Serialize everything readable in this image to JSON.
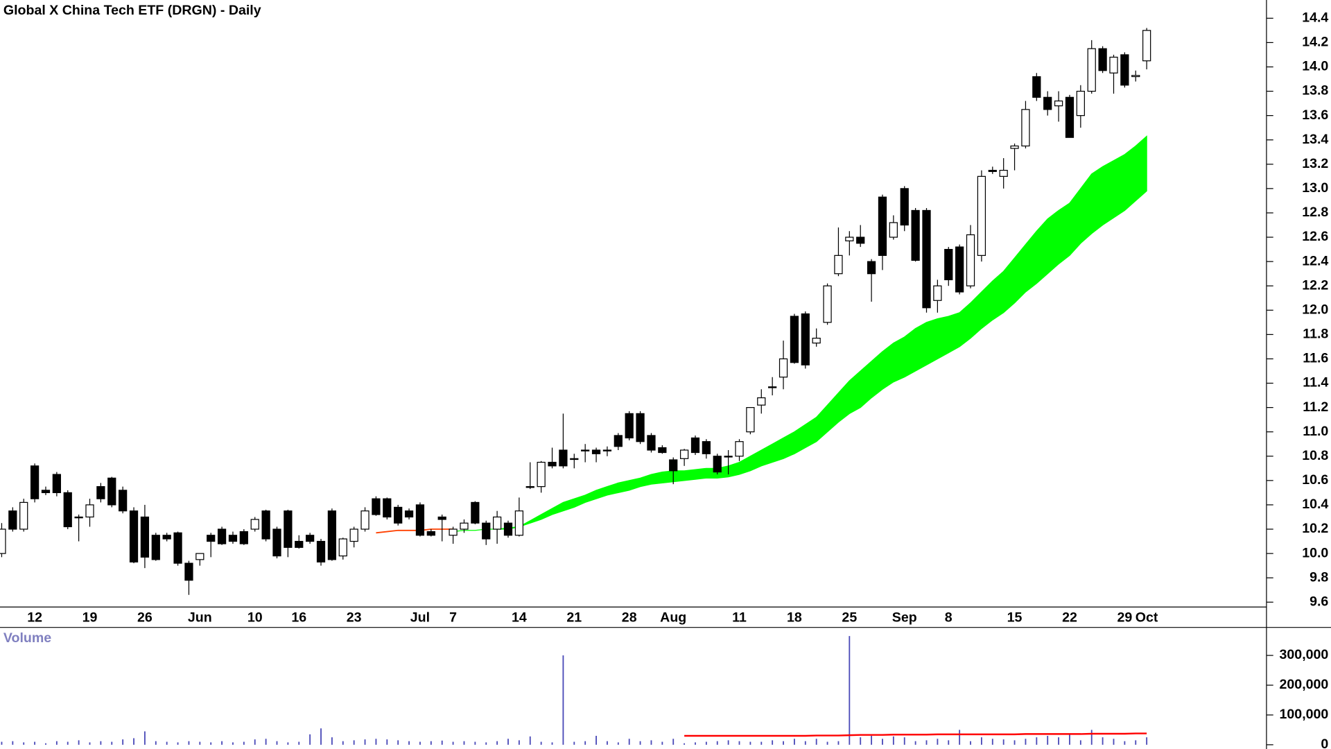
{
  "chart_data": [
    {
      "type": "candlestick",
      "title": "Global X China Tech ETF (DRGN) - Daily",
      "categories": [
        null,
        null,
        null,
        "12",
        null,
        null,
        null,
        null,
        "19",
        null,
        null,
        null,
        null,
        "26",
        null,
        null,
        null,
        null,
        "Jun",
        null,
        null,
        null,
        null,
        "10",
        null,
        null,
        null,
        "16",
        null,
        null,
        null,
        null,
        "23",
        null,
        null,
        null,
        null,
        null,
        "Jul",
        null,
        null,
        "7",
        null,
        null,
        null,
        null,
        null,
        "14",
        null,
        null,
        null,
        null,
        "21",
        null,
        null,
        null,
        null,
        "28",
        null,
        null,
        null,
        "Aug",
        null,
        null,
        null,
        null,
        null,
        "11",
        null,
        null,
        null,
        null,
        "18",
        null,
        null,
        null,
        null,
        "25",
        null,
        null,
        null,
        null,
        "Sep",
        null,
        null,
        null,
        "8",
        null,
        null,
        null,
        null,
        null,
        "15",
        null,
        null,
        null,
        null,
        "22",
        null,
        null,
        null,
        null,
        "29",
        null,
        "Oct"
      ],
      "open": [
        10.0,
        10.35,
        10.2,
        10.72,
        10.52,
        10.65,
        10.5,
        10.3,
        10.3,
        10.55,
        10.62,
        10.52,
        10.35,
        10.3,
        10.15,
        10.15,
        10.17,
        9.92,
        9.95,
        10.15,
        10.2,
        10.15,
        10.18,
        10.2,
        10.35,
        10.2,
        10.35,
        10.1,
        10.15,
        10.1,
        10.35,
        9.98,
        10.1,
        10.2,
        10.45,
        10.45,
        10.38,
        10.35,
        10.4,
        10.18,
        10.3,
        10.15,
        10.2,
        10.42,
        10.25,
        10.2,
        10.25,
        10.15,
        10.55,
        10.55,
        10.75,
        10.85,
        10.78,
        10.85,
        10.85,
        10.85,
        10.97,
        11.15,
        11.15,
        10.97,
        10.87,
        10.77,
        10.78,
        10.95,
        10.92,
        10.8,
        10.8,
        10.8,
        11.0,
        11.22,
        11.37,
        11.45,
        11.95,
        11.97,
        11.73,
        11.9,
        12.3,
        12.57,
        12.6,
        12.4,
        12.93,
        12.6,
        13.0,
        12.82,
        12.82,
        12.08,
        12.5,
        12.52,
        12.2,
        12.45,
        13.15,
        13.1,
        13.33,
        13.35,
        13.92,
        13.75,
        13.68,
        13.75,
        13.6,
        13.8,
        14.15,
        13.95,
        14.1,
        13.92,
        14.05
      ],
      "high": [
        10.25,
        10.38,
        10.45,
        10.74,
        10.55,
        10.67,
        10.52,
        10.32,
        10.45,
        10.58,
        10.63,
        10.55,
        10.38,
        10.4,
        10.17,
        10.17,
        10.18,
        9.94,
        10.0,
        10.17,
        10.22,
        10.18,
        10.2,
        10.3,
        10.36,
        10.22,
        10.36,
        10.15,
        10.17,
        10.12,
        10.37,
        10.13,
        10.22,
        10.38,
        10.47,
        10.46,
        10.4,
        10.37,
        10.42,
        10.2,
        10.32,
        10.22,
        10.28,
        10.43,
        10.27,
        10.35,
        10.27,
        10.46,
        10.75,
        10.76,
        10.87,
        11.15,
        10.82,
        10.9,
        10.87,
        10.88,
        10.99,
        11.17,
        11.17,
        10.99,
        10.89,
        10.79,
        10.86,
        10.97,
        10.94,
        10.82,
        10.85,
        10.94,
        11.2,
        11.35,
        11.45,
        11.75,
        11.97,
        11.99,
        11.85,
        12.22,
        12.68,
        12.65,
        12.7,
        12.42,
        12.95,
        12.78,
        13.02,
        12.84,
        12.84,
        12.25,
        12.52,
        12.54,
        12.7,
        13.15,
        13.18,
        13.25,
        13.37,
        13.72,
        13.95,
        13.8,
        13.8,
        13.77,
        13.85,
        14.22,
        14.17,
        14.1,
        14.12,
        13.97,
        14.32
      ],
      "low": [
        9.97,
        10.18,
        10.18,
        10.42,
        10.48,
        10.47,
        10.2,
        10.1,
        10.22,
        10.42,
        10.38,
        10.33,
        9.92,
        9.88,
        9.94,
        10.1,
        9.9,
        9.66,
        9.9,
        9.97,
        10.07,
        10.08,
        10.07,
        10.18,
        10.1,
        9.96,
        9.97,
        10.04,
        10.08,
        9.9,
        9.94,
        9.95,
        10.05,
        10.18,
        10.31,
        10.28,
        10.23,
        10.28,
        10.14,
        10.14,
        10.1,
        10.08,
        10.17,
        10.24,
        10.07,
        10.08,
        10.13,
        10.14,
        10.53,
        10.5,
        10.7,
        10.7,
        10.7,
        10.75,
        10.75,
        10.8,
        10.85,
        10.93,
        10.9,
        10.83,
        10.82,
        10.57,
        10.72,
        10.81,
        10.78,
        10.65,
        10.65,
        10.76,
        10.98,
        11.15,
        11.3,
        11.35,
        11.56,
        11.52,
        11.7,
        11.88,
        12.28,
        12.45,
        12.52,
        12.07,
        12.33,
        12.58,
        12.65,
        12.4,
        11.98,
        11.98,
        12.2,
        12.13,
        12.18,
        12.4,
        13.12,
        13.0,
        13.15,
        13.33,
        13.72,
        13.6,
        13.55,
        13.42,
        13.5,
        13.78,
        13.95,
        13.78,
        13.83,
        13.88,
        13.98
      ],
      "close": [
        10.2,
        10.2,
        10.42,
        10.45,
        10.5,
        10.5,
        10.22,
        10.3,
        10.4,
        10.45,
        10.4,
        10.35,
        9.93,
        9.97,
        9.95,
        10.12,
        9.92,
        9.78,
        10.0,
        10.1,
        10.08,
        10.1,
        10.08,
        10.28,
        10.12,
        9.98,
        10.05,
        10.05,
        10.1,
        9.93,
        9.95,
        10.12,
        10.2,
        10.35,
        10.32,
        10.3,
        10.25,
        10.3,
        10.15,
        10.15,
        10.28,
        10.2,
        10.25,
        10.25,
        10.12,
        10.3,
        10.15,
        10.35,
        10.55,
        10.75,
        10.72,
        10.72,
        10.78,
        10.85,
        10.82,
        10.85,
        10.88,
        10.95,
        10.92,
        10.85,
        10.83,
        10.68,
        10.85,
        10.83,
        10.82,
        10.67,
        10.8,
        10.92,
        11.2,
        11.28,
        11.37,
        11.6,
        11.57,
        11.55,
        11.77,
        12.2,
        12.45,
        12.6,
        12.55,
        12.3,
        12.45,
        12.72,
        12.7,
        12.41,
        12.02,
        12.2,
        12.25,
        12.15,
        12.62,
        13.1,
        13.14,
        13.15,
        13.35,
        13.65,
        13.75,
        13.65,
        13.72,
        13.42,
        13.8,
        14.15,
        13.97,
        14.08,
        13.85,
        13.93,
        14.3
      ],
      "up_color": "#ffffff",
      "down_color": "#000000",
      "band": {
        "color": "#00ff00",
        "upper": [
          null,
          null,
          null,
          null,
          null,
          null,
          null,
          null,
          null,
          null,
          null,
          null,
          null,
          null,
          null,
          null,
          null,
          null,
          null,
          null,
          null,
          null,
          null,
          null,
          null,
          null,
          null,
          null,
          null,
          null,
          null,
          null,
          null,
          null,
          null,
          null,
          null,
          null,
          null,
          null,
          null,
          10.18,
          10.19,
          10.19,
          10.2,
          10.2,
          10.21,
          10.22,
          10.27,
          10.32,
          10.37,
          10.42,
          10.45,
          10.48,
          10.52,
          10.55,
          10.58,
          10.6,
          10.62,
          10.65,
          10.67,
          10.68,
          10.68,
          10.69,
          10.7,
          10.7,
          10.72,
          10.75,
          10.8,
          10.85,
          10.9,
          10.95,
          11.0,
          11.06,
          11.12,
          11.22,
          11.32,
          11.42,
          11.5,
          11.58,
          11.66,
          11.73,
          11.78,
          11.85,
          11.9,
          11.93,
          11.95,
          11.98,
          12.06,
          12.15,
          12.24,
          12.32,
          12.43,
          12.54,
          12.65,
          12.75,
          12.82,
          12.88,
          13.0,
          13.12,
          13.18,
          13.23,
          13.28,
          13.35,
          13.43
        ],
        "lower": [
          null,
          null,
          null,
          null,
          null,
          null,
          null,
          null,
          null,
          null,
          null,
          null,
          null,
          null,
          null,
          null,
          null,
          null,
          null,
          null,
          null,
          null,
          null,
          null,
          null,
          null,
          null,
          null,
          null,
          null,
          null,
          null,
          null,
          null,
          null,
          null,
          null,
          null,
          null,
          null,
          null,
          10.18,
          10.19,
          10.19,
          10.2,
          10.2,
          10.2,
          10.22,
          10.25,
          10.28,
          10.32,
          10.35,
          10.38,
          10.42,
          10.45,
          10.48,
          10.5,
          10.52,
          10.55,
          10.57,
          10.58,
          10.59,
          10.6,
          10.61,
          10.62,
          10.62,
          10.63,
          10.65,
          10.68,
          10.72,
          10.75,
          10.78,
          10.82,
          10.87,
          10.92,
          11.0,
          11.08,
          11.15,
          11.2,
          11.28,
          11.35,
          11.41,
          11.45,
          11.5,
          11.55,
          11.6,
          11.65,
          11.7,
          11.77,
          11.85,
          11.92,
          11.98,
          12.06,
          12.15,
          12.22,
          12.3,
          12.38,
          12.45,
          12.55,
          12.63,
          12.7,
          12.76,
          12.82,
          12.9,
          12.98
        ]
      },
      "line": {
        "color": "#ff4000",
        "values": [
          null,
          null,
          null,
          null,
          null,
          null,
          null,
          null,
          null,
          null,
          null,
          null,
          null,
          null,
          null,
          null,
          null,
          null,
          null,
          null,
          null,
          null,
          null,
          null,
          null,
          null,
          null,
          null,
          null,
          null,
          null,
          null,
          null,
          null,
          10.17,
          10.18,
          10.19,
          10.19,
          10.19,
          10.2,
          10.2,
          10.2,
          null,
          null,
          null,
          null,
          null,
          null,
          null,
          null,
          null,
          null,
          null,
          null,
          null,
          null,
          null,
          null,
          null,
          null,
          null,
          null,
          null,
          null,
          null,
          null,
          null,
          null,
          null,
          null,
          null,
          null,
          null,
          null,
          null,
          null,
          null,
          null,
          null,
          null,
          null,
          null,
          null,
          null,
          null,
          null,
          null,
          null,
          null,
          null,
          null,
          null,
          null,
          null,
          null,
          null,
          null,
          null,
          null,
          null,
          null,
          null,
          null,
          null,
          null
        ]
      },
      "ylim": [
        9.56,
        14.55
      ],
      "yticks": [
        9.6,
        9.8,
        {
          "value": 10,
          "label": "10.0"
        },
        10.2,
        10.4,
        10.6,
        10.8,
        {
          "value": 11,
          "label": "11.0"
        },
        11.2,
        11.4,
        11.6,
        11.8,
        {
          "value": 12,
          "label": "12.0"
        },
        12.2,
        12.4,
        12.6,
        12.8,
        {
          "value": 13,
          "label": "13.0"
        },
        13.2,
        13.4,
        13.6,
        13.8,
        {
          "value": 14,
          "label": "14.0"
        },
        14.2,
        14.4
      ]
    },
    {
      "type": "volume",
      "title": "Volume",
      "color": "#4a4ab8",
      "values": [
        10000,
        12000,
        8000,
        10000,
        5000,
        12000,
        10000,
        15000,
        8000,
        12000,
        10000,
        18000,
        22000,
        45000,
        12000,
        10000,
        8000,
        12000,
        10000,
        8000,
        12000,
        8000,
        10000,
        18000,
        20000,
        12000,
        8000,
        10000,
        35000,
        55000,
        25000,
        12000,
        15000,
        18000,
        20000,
        18000,
        15000,
        12000,
        10000,
        12000,
        14000,
        10000,
        12000,
        10000,
        8000,
        12000,
        20000,
        15000,
        28000,
        10000,
        8000,
        300000,
        10000,
        12000,
        30000,
        12000,
        8000,
        20000,
        12000,
        15000,
        10000,
        20000,
        5000,
        8000,
        10000,
        12000,
        15000,
        12000,
        10000,
        10000,
        15000,
        12000,
        20000,
        12000,
        20000,
        10000,
        12000,
        365000,
        25000,
        30000,
        20000,
        28000,
        25000,
        12000,
        15000,
        20000,
        15000,
        50000,
        12000,
        25000,
        20000,
        18000,
        15000,
        20000,
        25000,
        30000,
        25000,
        35000,
        15000,
        50000,
        25000,
        20000,
        12000,
        15000,
        25000
      ],
      "average": {
        "color": "#ff0000",
        "values": [
          null,
          null,
          null,
          null,
          null,
          null,
          null,
          null,
          null,
          null,
          null,
          null,
          null,
          null,
          null,
          null,
          null,
          null,
          null,
          null,
          null,
          null,
          null,
          null,
          null,
          null,
          null,
          null,
          null,
          null,
          null,
          null,
          null,
          null,
          null,
          null,
          null,
          null,
          null,
          null,
          null,
          null,
          null,
          null,
          null,
          null,
          null,
          null,
          null,
          null,
          null,
          null,
          null,
          null,
          null,
          null,
          null,
          null,
          null,
          null,
          null,
          null,
          30000,
          30000,
          30000,
          30000,
          30000,
          30000,
          30000,
          30000,
          30000,
          30000,
          30000,
          30000,
          31000,
          31000,
          31000,
          32000,
          33000,
          33000,
          33000,
          34000,
          34000,
          34000,
          34000,
          35000,
          35000,
          35000,
          35000,
          35000,
          35000,
          35000,
          35000,
          36000,
          36000,
          36000,
          36000,
          36000,
          36000,
          37000,
          37000,
          37000,
          37000,
          38000,
          38000
        ]
      },
      "ylim": [
        0,
        394000
      ],
      "yticks": [
        0,
        {
          "value": 100000,
          "label": "100,000"
        },
        {
          "value": 200000,
          "label": "200,000"
        },
        {
          "value": 300000,
          "label": "300,000"
        }
      ]
    }
  ]
}
